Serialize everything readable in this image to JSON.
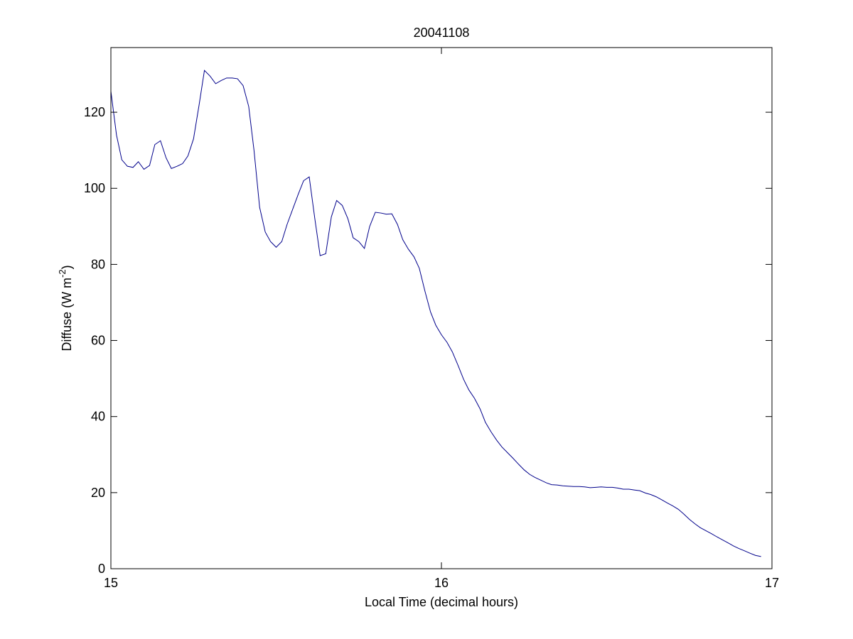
{
  "colors": {
    "background": "#ffffff",
    "axes": "#000000",
    "series_line": "#00008b"
  },
  "chart_data": {
    "type": "line",
    "title": "20041108",
    "xlabel": "Local Time (decimal hours)",
    "ylabel_main": "Diffuse (W m",
    "ylabel_sup": "-2",
    "ylabel_close": ")",
    "xlim": [
      15,
      17
    ],
    "ylim": [
      0,
      137
    ],
    "xticks": [
      15,
      16,
      17
    ],
    "yticks": [
      0,
      20,
      40,
      60,
      80,
      100,
      120
    ],
    "grid": false,
    "series": [
      {
        "x": [
          15.0,
          15.017,
          15.033,
          15.05,
          15.067,
          15.083,
          15.1,
          15.117,
          15.133,
          15.15,
          15.167,
          15.183,
          15.2,
          15.217,
          15.233,
          15.25,
          15.267,
          15.283,
          15.3,
          15.317,
          15.333,
          15.35,
          15.367,
          15.383,
          15.4,
          15.417,
          15.433,
          15.45,
          15.467,
          15.483,
          15.5,
          15.517,
          15.533,
          15.55,
          15.567,
          15.583,
          15.6,
          15.617,
          15.633,
          15.65,
          15.667,
          15.683,
          15.7,
          15.717,
          15.733,
          15.75,
          15.767,
          15.783,
          15.8,
          15.817,
          15.833,
          15.85,
          15.867,
          15.883,
          15.9,
          15.917,
          15.933,
          15.95,
          15.967,
          15.983,
          16.0,
          16.017,
          16.033,
          16.05,
          16.067,
          16.083,
          16.1,
          16.117,
          16.133,
          16.15,
          16.167,
          16.183,
          16.2,
          16.217,
          16.233,
          16.25,
          16.267,
          16.283,
          16.3,
          16.317,
          16.333,
          16.35,
          16.367,
          16.383,
          16.4,
          16.417,
          16.433,
          16.45,
          16.467,
          16.483,
          16.5,
          16.517,
          16.533,
          16.55,
          16.567,
          16.583,
          16.6,
          16.617,
          16.633,
          16.65,
          16.667,
          16.683,
          16.7,
          16.717,
          16.733,
          16.75,
          16.767,
          16.783,
          16.8,
          16.817,
          16.833,
          16.85,
          16.867,
          16.883,
          16.9,
          16.917,
          16.933,
          16.95,
          16.967
        ],
        "y": [
          125.5,
          114.0,
          107.5,
          105.8,
          105.5,
          107.0,
          105.0,
          106.0,
          111.5,
          112.5,
          108.0,
          105.2,
          105.8,
          106.5,
          108.5,
          113.0,
          122.0,
          131.0,
          129.5,
          127.5,
          128.3,
          129.0,
          129.0,
          128.8,
          127.0,
          121.5,
          110.0,
          95.0,
          88.5,
          86.0,
          84.5,
          86.0,
          90.5,
          94.5,
          98.5,
          102.0,
          103.0,
          92.0,
          82.3,
          82.8,
          92.5,
          96.8,
          95.5,
          92.0,
          87.0,
          86.0,
          84.2,
          90.0,
          93.7,
          93.5,
          93.2,
          93.3,
          90.5,
          86.5,
          84.0,
          82.0,
          79.0,
          73.0,
          67.5,
          64.0,
          61.5,
          59.5,
          57.0,
          53.5,
          49.8,
          47.0,
          44.8,
          42.0,
          38.5,
          36.0,
          33.8,
          32.0,
          30.5,
          29.0,
          27.5,
          26.0,
          24.8,
          24.0,
          23.3,
          22.6,
          22.1,
          22.0,
          21.8,
          21.7,
          21.6,
          21.6,
          21.5,
          21.3,
          21.4,
          21.5,
          21.4,
          21.4,
          21.2,
          20.9,
          20.9,
          20.7,
          20.5,
          19.9,
          19.5,
          18.9,
          18.1,
          17.3,
          16.5,
          15.6,
          14.4,
          13.0,
          11.8,
          10.8,
          10.0,
          9.2,
          8.4,
          7.6,
          6.8,
          6.0,
          5.3,
          4.7,
          4.1,
          3.5,
          3.2
        ]
      }
    ]
  }
}
